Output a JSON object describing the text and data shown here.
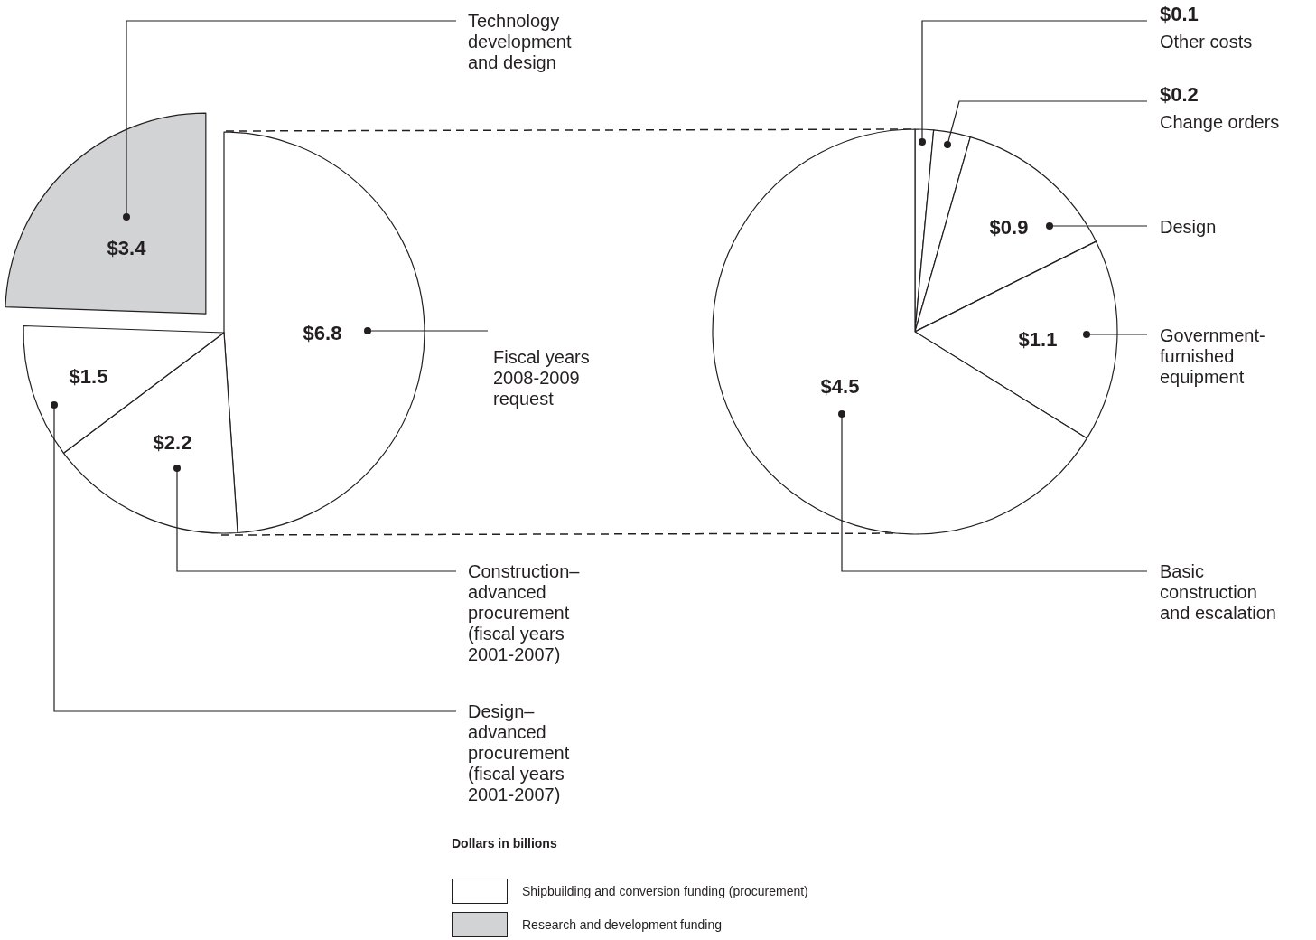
{
  "chart_data": [
    {
      "type": "pie",
      "categories": [
        "Fiscal years 2008-2009 request",
        "Construction–advanced procurement (fiscal years 2001-2007)",
        "Design–advanced procurement (fiscal years 2001-2007)",
        "Technology development and design"
      ],
      "values": [
        6.8,
        2.2,
        1.5,
        3.4
      ],
      "value_labels": [
        "$6.8",
        "$2.2",
        "$1.5",
        "$3.4"
      ],
      "colors": [
        "#ffffff",
        "#ffffff",
        "#ffffff",
        "#d1d3d4"
      ],
      "annotations": [
        "Dollars in billions",
        "Shipbuilding and conversion funding (procurement)",
        "Research and development funding"
      ]
    },
    {
      "type": "pie",
      "categories": [
        "Other costs",
        "Change orders",
        "Design",
        "Government-furnished equipment",
        "Basic construction and escalation"
      ],
      "values": [
        0.1,
        0.2,
        0.9,
        1.1,
        4.5
      ],
      "value_labels": [
        "$0.1",
        "$0.2",
        "$0.9",
        "$1.1",
        "$4.5"
      ],
      "colors": [
        "#ffffff",
        "#ffffff",
        "#ffffff",
        "#ffffff",
        "#ffffff"
      ]
    }
  ]
}
